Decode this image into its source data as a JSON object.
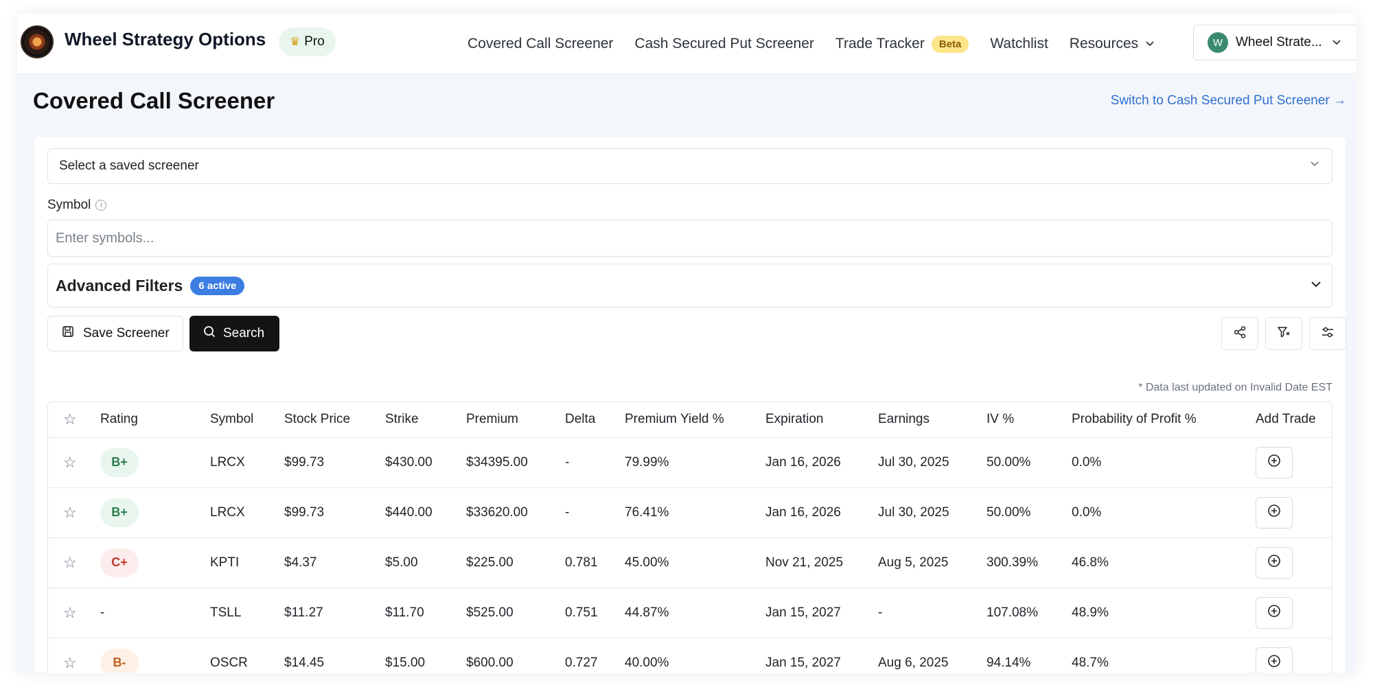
{
  "brand": {
    "name": "Wheel Strategy Options",
    "plan_badge": "Pro",
    "plan_icon": "crown-icon"
  },
  "nav": {
    "links": [
      {
        "label": "Covered Call Screener"
      },
      {
        "label": "Cash Secured Put Screener"
      },
      {
        "label": "Trade Tracker",
        "badge": "Beta"
      },
      {
        "label": "Watchlist"
      },
      {
        "label": "Resources"
      }
    ],
    "user": {
      "initial": "W",
      "name": "Wheel Strate..."
    }
  },
  "page": {
    "title": "Covered Call Screener",
    "switch_link": "Switch to Cash Secured Put Screener →"
  },
  "screener": {
    "saved_select": "Select a saved screener",
    "symbol_label": "Symbol",
    "symbol_placeholder": "Enter symbols...",
    "advanced_title": "Advanced Filters",
    "active_badge": "6 active",
    "save_label": "Save Screener",
    "search_label": "Search",
    "updated_note": "* Data last updated on Invalid Date EST"
  },
  "table": {
    "headers": [
      "Rating",
      "Symbol",
      "Stock Price",
      "Strike",
      "Premium",
      "Delta",
      "Premium Yield %",
      "Expiration",
      "Earnings",
      "IV %",
      "Probability of Profit %",
      "Add Trade"
    ],
    "rows": [
      {
        "rating": "B+",
        "symbol": "LRCX",
        "stock_price": "$99.73",
        "strike": "$430.00",
        "premium": "$34395.00",
        "delta": "-",
        "yield": "79.99%",
        "expiration": "Jan 16, 2026",
        "earnings": "Jul 30, 2025",
        "iv": "50.00%",
        "pop": "0.0%"
      },
      {
        "rating": "B+",
        "symbol": "LRCX",
        "stock_price": "$99.73",
        "strike": "$440.00",
        "premium": "$33620.00",
        "delta": "-",
        "yield": "76.41%",
        "expiration": "Jan 16, 2026",
        "earnings": "Jul 30, 2025",
        "iv": "50.00%",
        "pop": "0.0%"
      },
      {
        "rating": "C+",
        "symbol": "KPTI",
        "stock_price": "$4.37",
        "strike": "$5.00",
        "premium": "$225.00",
        "delta": "0.781",
        "yield": "45.00%",
        "expiration": "Nov 21, 2025",
        "earnings": "Aug 5, 2025",
        "iv": "300.39%",
        "pop": "46.8%"
      },
      {
        "rating": "-",
        "symbol": "TSLL",
        "stock_price": "$11.27",
        "strike": "$11.70",
        "premium": "$525.00",
        "delta": "0.751",
        "yield": "44.87%",
        "expiration": "Jan 15, 2027",
        "earnings": "-",
        "iv": "107.08%",
        "pop": "48.9%"
      },
      {
        "rating": "B-",
        "symbol": "OSCR",
        "stock_price": "$14.45",
        "strike": "$15.00",
        "premium": "$600.00",
        "delta": "0.727",
        "yield": "40.00%",
        "expiration": "Jan 15, 2027",
        "earnings": "Aug 6, 2025",
        "iv": "94.14%",
        "pop": "48.7%"
      }
    ]
  },
  "colors": {
    "rating_b_plus": {
      "bg": "#e8f6ee",
      "fg": "#2f7d4f"
    },
    "rating_c_plus": {
      "bg": "#fdecec",
      "fg": "#c0392b"
    },
    "rating_b_minus": {
      "bg": "#fdf1e6",
      "fg": "#c2611c"
    },
    "link": "#2f6fd0",
    "active_badge": "#3b7de0"
  }
}
